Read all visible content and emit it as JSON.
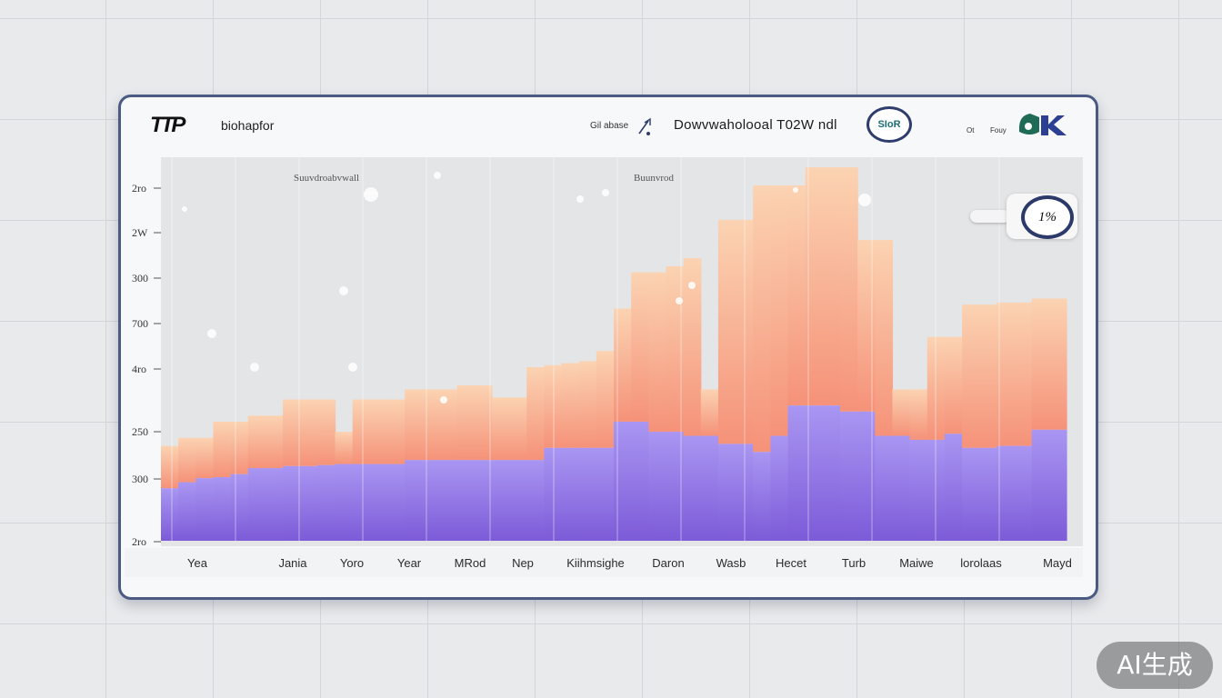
{
  "header": {
    "logo": "TTP",
    "app_name": "biohapfor",
    "small_label": "Gil abase",
    "title": "Dowvwaholooal T02W ndl",
    "badge": "SIoR",
    "tiny_a": "Ot",
    "tiny_b": "Fouy"
  },
  "toggle": {
    "value_label": "1%"
  },
  "watermark": "AI生成",
  "colors": {
    "top_series_top": "#f9c9a4",
    "top_series_bottom": "#f5977e",
    "bottom_series_top": "#9f8cf0",
    "bottom_series_bottom": "#7f5fdc",
    "frame": "#4a5a82"
  },
  "chart_data": {
    "type": "bar",
    "stacked": true,
    "grid": true,
    "series_labels": [
      "Suuvdroabvwall",
      "Buunvrod"
    ],
    "y_ticks": [
      "2ro",
      "2W",
      "300",
      "700",
      "4ro",
      "250",
      "300",
      "2ro"
    ],
    "x_ticks": [
      "Yea",
      "Jania",
      "Yoro",
      "Year",
      "MRod",
      "Nep",
      "Kiihmsighe",
      "Daron",
      "Wasb",
      "Hecet",
      "Turb",
      "Maiwe",
      "lorolaas",
      "Mayd"
    ],
    "lower_series": [
      52,
      58,
      62,
      63,
      66,
      72,
      72,
      74,
      74,
      75,
      76,
      76,
      76,
      76,
      80,
      80,
      80,
      80,
      80,
      80,
      80,
      80,
      92,
      92,
      92,
      92,
      118,
      118,
      108,
      108,
      104,
      104,
      96,
      96,
      88,
      104,
      134,
      134,
      134,
      128,
      128,
      104,
      104,
      100,
      100,
      106,
      92,
      92,
      94,
      94,
      110,
      110
    ],
    "total_series": [
      94,
      102,
      102,
      118,
      118,
      124,
      124,
      140,
      140,
      140,
      108,
      140,
      140,
      140,
      150,
      150,
      150,
      154,
      154,
      142,
      142,
      172,
      174,
      176,
      178,
      188,
      230,
      266,
      266,
      272,
      280,
      150,
      318,
      318,
      352,
      352,
      352,
      370,
      370,
      370,
      298,
      298,
      150,
      150,
      202,
      202,
      234,
      234,
      236,
      236,
      240,
      240
    ],
    "ylim": [
      0,
      380
    ]
  }
}
